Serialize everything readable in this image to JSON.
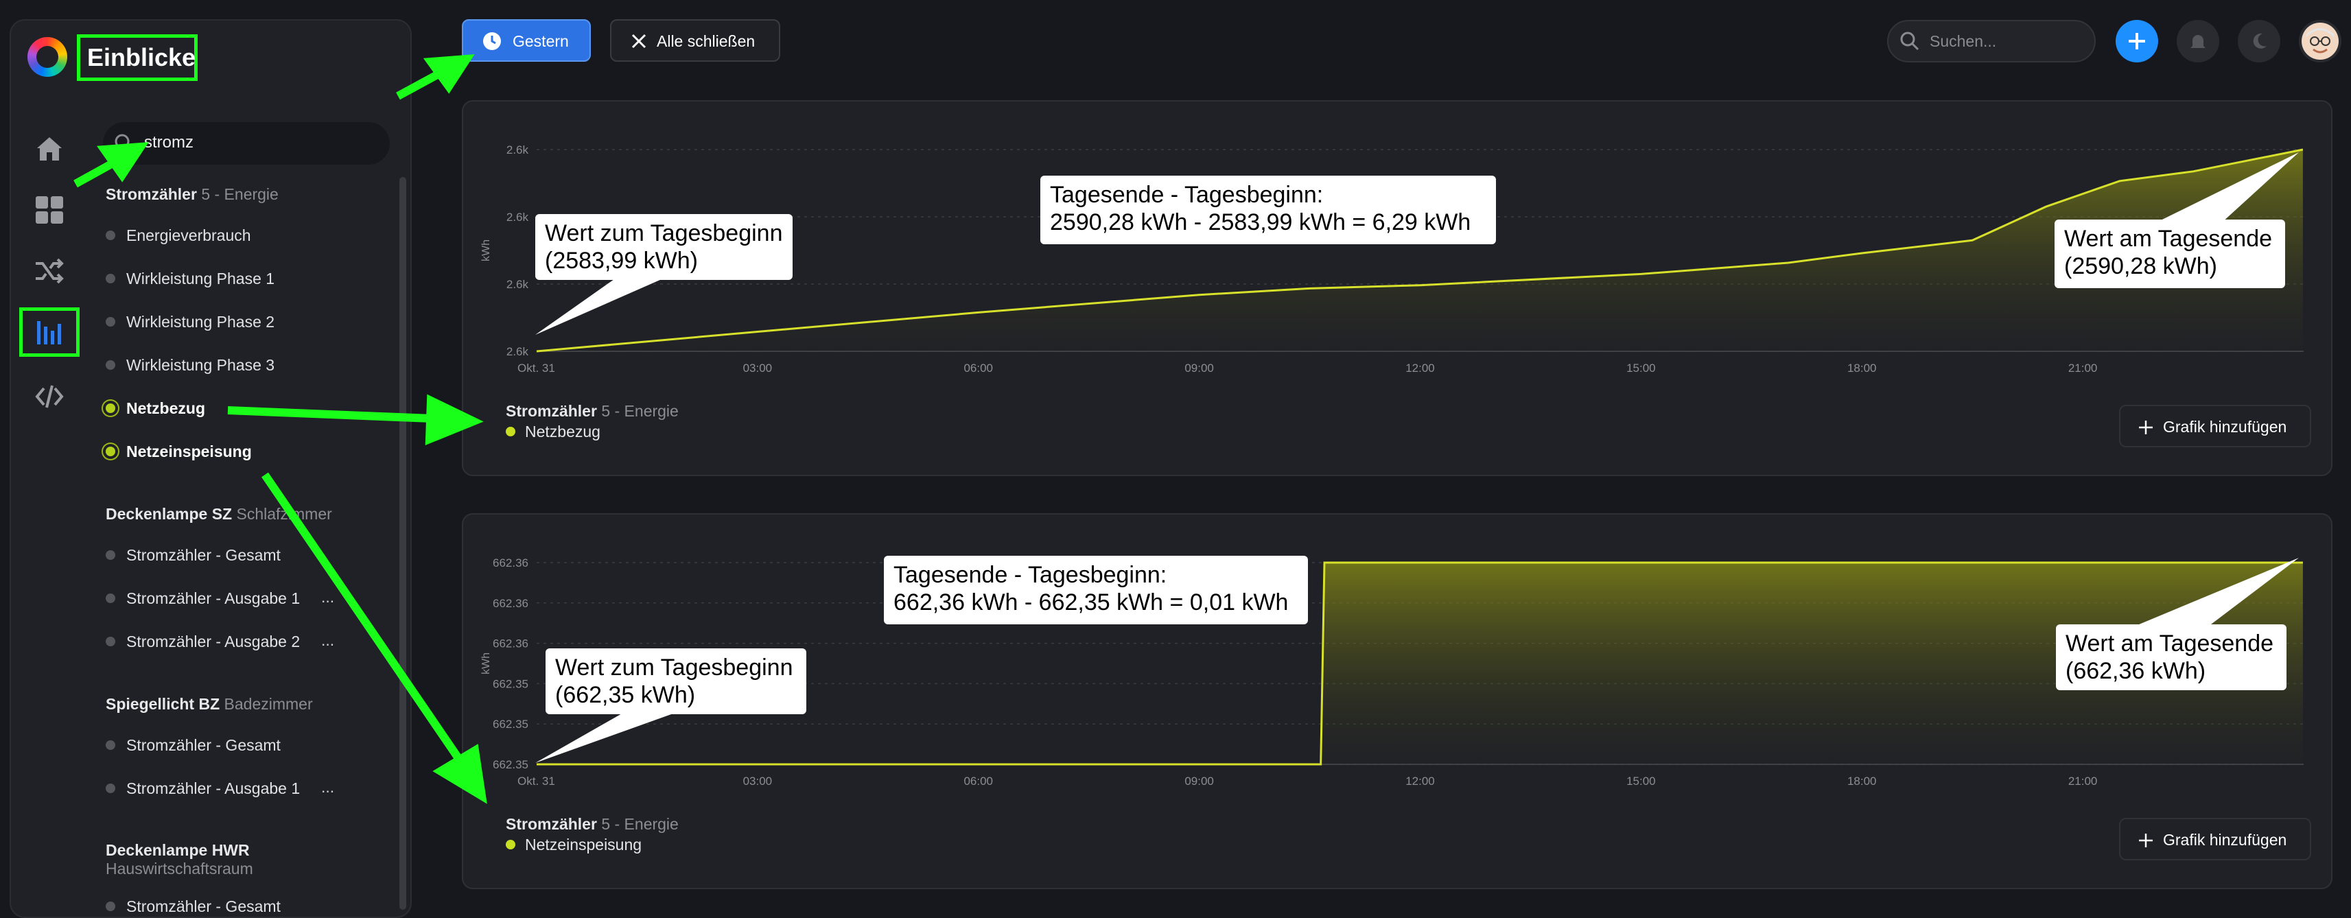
{
  "app": {
    "title": "Einblicke"
  },
  "sidebar": {
    "search_value": "stromz",
    "groups": [
      {
        "name": "Stromzähler",
        "sub": "5 - Energie",
        "items": [
          "Energieverbrauch",
          "Wirkleistung Phase 1",
          "Wirkleistung Phase 2",
          "Wirkleistung Phase 3",
          "Netzbezug",
          "Netzeinspeisung"
        ]
      },
      {
        "name": "Deckenlampe SZ",
        "sub": "Schlafzimmer",
        "items": [
          "Stromzähler - Gesamt",
          "Stromzähler - Ausgabe 1",
          "Stromzähler - Ausgabe 2"
        ]
      },
      {
        "name": "Spiegellicht BZ",
        "sub": "Badezimmer",
        "items": [
          "Stromzähler - Gesamt",
          "Stromzähler - Ausgabe 1"
        ]
      },
      {
        "name": "Deckenlampe HWR",
        "sub": "Hauswirtschaftsraum",
        "items": [
          "Stromzähler - Gesamt"
        ]
      }
    ],
    "ellipsis": "..."
  },
  "toolbar": {
    "date_button": "Gestern",
    "close_all": "Alle schließen",
    "search_placeholder": "Suchen...",
    "accent": "#2d73e3"
  },
  "charts_ui": [
    {
      "legend_title": "Stromzähler",
      "legend_sub": "5 - Energie",
      "series": "Netzbezug",
      "add_button": "Grafik hinzufügen",
      "callout_start": "Wert zum Tagesbeginn\n(2583,99 kWh)",
      "callout_end": "Wert am Tagesende\n(2590,28 kWh)",
      "callout_diff": "Tagesende - Tagesbeginn:\n2590,28 kWh - 2583,99 kWh = 6,29 kWh"
    },
    {
      "legend_title": "Stromzähler",
      "legend_sub": "5 - Energie",
      "series": "Netzeinspeisung",
      "add_button": "Grafik hinzufügen",
      "callout_start": "Wert zum Tagesbeginn\n(662,35 kWh)",
      "callout_end": "Wert am Tagesende\n(662,36 kWh)",
      "callout_diff": "Tagesende - Tagesbeginn:\n662,36 kWh - 662,35 kWh = 0,01 kWh"
    }
  ],
  "chart_data": [
    {
      "type": "area",
      "ylabel": "kWh",
      "yticks": [
        "2.6k",
        "2.6k",
        "2.6k",
        "2.6k"
      ],
      "ylim": [
        2583.99,
        2590.28
      ],
      "xticks": [
        "Okt. 31",
        "03:00",
        "06:00",
        "09:00",
        "12:00",
        "15:00",
        "18:00",
        "21:00"
      ],
      "series": [
        {
          "name": "Netzbezug",
          "x": [
            0,
            3,
            6,
            9,
            10.5,
            12,
            15,
            17,
            18,
            19.5,
            20.5,
            21.5,
            22.5,
            23.99
          ],
          "y": [
            2583.99,
            2584.6,
            2585.2,
            2585.75,
            2585.95,
            2586.05,
            2586.4,
            2586.75,
            2587.05,
            2587.45,
            2588.5,
            2589.3,
            2589.6,
            2590.28
          ]
        }
      ],
      "color": "#d7e02a"
    },
    {
      "type": "area",
      "ylabel": "kWh",
      "yticks": [
        "662.36",
        "662.36",
        "662.36",
        "662.35",
        "662.35",
        "662.35"
      ],
      "ylim": [
        662.35,
        662.36
      ],
      "xticks": [
        "Okt. 31",
        "03:00",
        "06:00",
        "09:00",
        "12:00",
        "15:00",
        "18:00",
        "21:00"
      ],
      "series": [
        {
          "name": "Netzeinspeisung",
          "x": [
            0,
            10.65,
            10.7,
            23.99
          ],
          "y": [
            662.35,
            662.35,
            662.36,
            662.36
          ]
        }
      ],
      "color": "#d7e02a"
    }
  ]
}
